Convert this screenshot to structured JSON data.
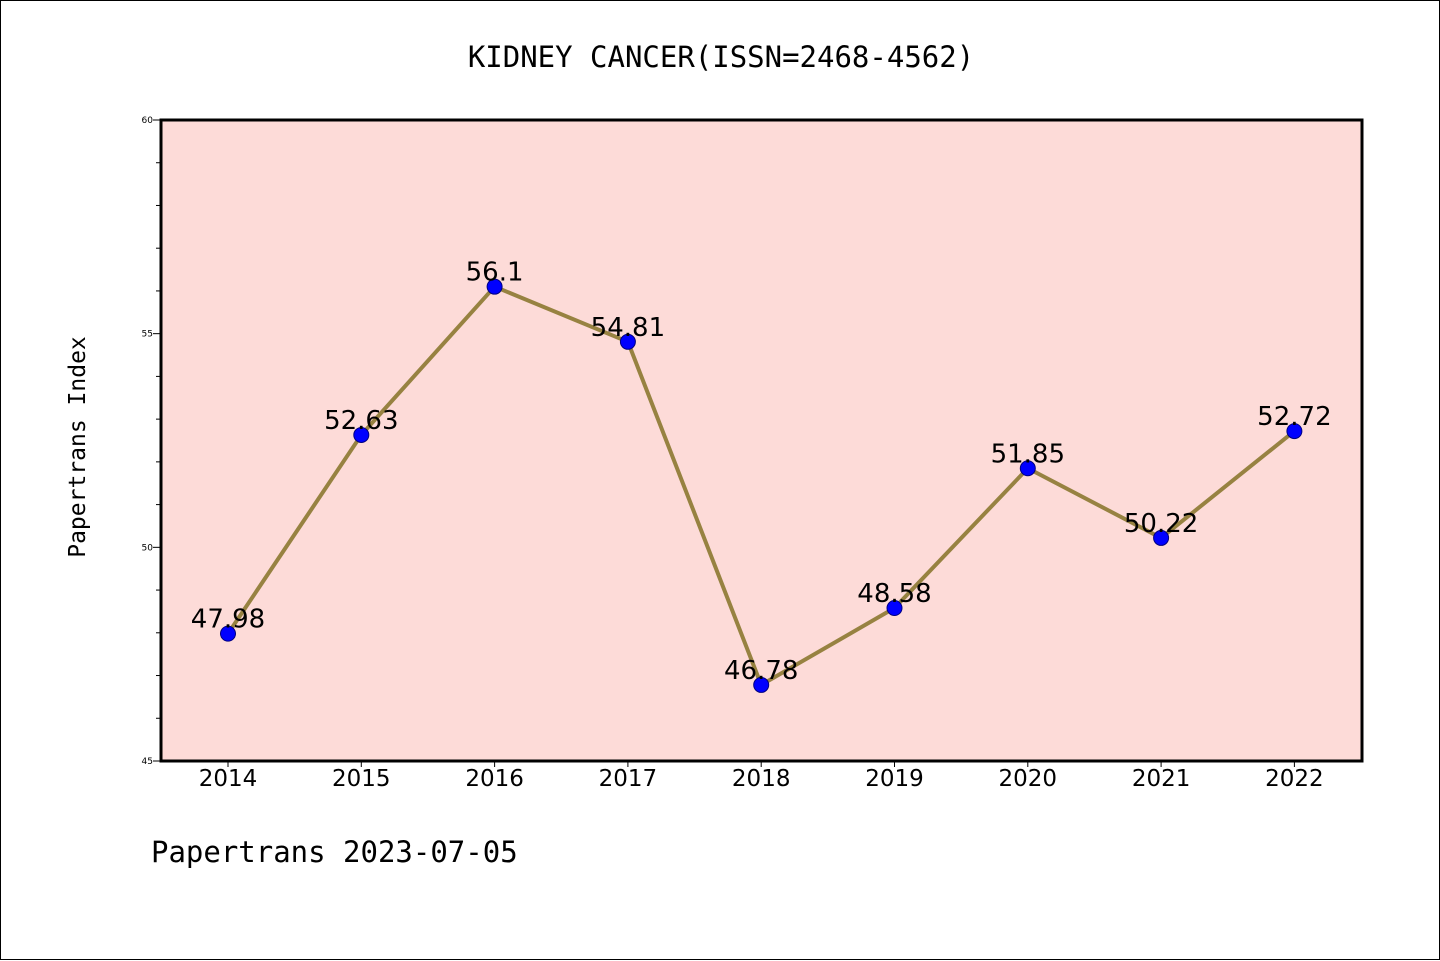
{
  "footer": "Papertrans 2023-07-05",
  "colors": {
    "plot_background": "#fddbd8",
    "line": "#978241",
    "marker": "#0000ff",
    "marker_edge": "#000080",
    "axis": "#000000"
  },
  "chart_data": {
    "type": "line",
    "title": "KIDNEY CANCER(ISSN=2468-4562)",
    "xlabel": "",
    "ylabel": "Papertrans Index",
    "x": [
      "2014",
      "2015",
      "2016",
      "2017",
      "2018",
      "2019",
      "2020",
      "2021",
      "2022"
    ],
    "series": [
      {
        "values": [
          47.98,
          52.63,
          56.1,
          54.81,
          46.78,
          48.58,
          51.85,
          50.22,
          52.72
        ],
        "labels": [
          "47.98",
          "52.63",
          "56.1",
          "54.81",
          "46.78",
          "48.58",
          "51.85",
          "50.22",
          "52.72"
        ]
      }
    ],
    "ylim": [
      45,
      60
    ],
    "yticks": [
      45,
      50,
      55,
      60
    ],
    "ytick_labels": [
      "45",
      "50",
      "55",
      "60"
    ],
    "minor_ytick_step": 1,
    "grid": false,
    "legend": "none"
  }
}
